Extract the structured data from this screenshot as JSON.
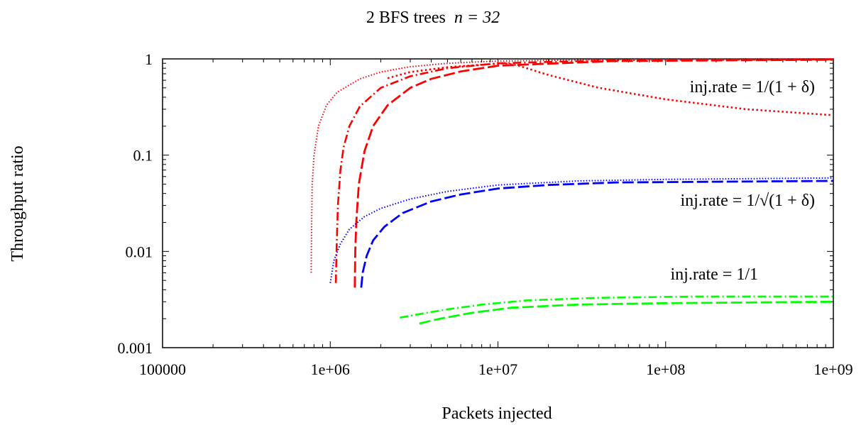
{
  "chart_data": {
    "type": "line",
    "title_prefix": "2 BFS trees",
    "title_math": "n = 32",
    "xlabel": "Packets injected",
    "ylabel": "Throughput ratio",
    "xscale": "log",
    "yscale": "log",
    "xlim": [
      100000,
      1000000000
    ],
    "ylim": [
      0.001,
      1
    ],
    "xticks": [
      100000,
      1000000,
      10000000,
      100000000,
      1000000000
    ],
    "xtick_labels": [
      "100000",
      "1e+06",
      "1e+07",
      "1e+08",
      "1e+09"
    ],
    "yticks": [
      0.001,
      0.01,
      0.1,
      1
    ],
    "ytick_labels": [
      "0.001",
      "0.01",
      "0.1",
      "1"
    ],
    "grid": false,
    "colors": {
      "red": "#ff0000",
      "blue": "#0000ff",
      "green": "#00ff00"
    },
    "annotations": [
      {
        "text": "inj.rate = 1/(1 + δ)",
        "color": "#ff0000"
      },
      {
        "text": "inj.rate = 1/√(1 + δ)",
        "color": "#0000ff"
      },
      {
        "text": "inj.rate = 1/1",
        "color": "#00ff00"
      }
    ],
    "series": [
      {
        "group": "red",
        "dash": "dot-fine",
        "points": [
          [
            770000,
            0.006
          ],
          [
            775000,
            0.02
          ],
          [
            780000,
            0.05
          ],
          [
            800000,
            0.1
          ],
          [
            850000,
            0.2
          ],
          [
            950000,
            0.33
          ],
          [
            1100000,
            0.45
          ],
          [
            1500000,
            0.62
          ],
          [
            2000000,
            0.73
          ],
          [
            3000000,
            0.83
          ],
          [
            5000000,
            0.9
          ],
          [
            10000000,
            0.95
          ],
          [
            50000000,
            0.985
          ],
          [
            1000000000,
            1.0
          ]
        ]
      },
      {
        "group": "red",
        "dash": "dash-dot",
        "points": [
          [
            1080000,
            0.0047
          ],
          [
            1090000,
            0.01
          ],
          [
            1110000,
            0.03
          ],
          [
            1150000,
            0.07
          ],
          [
            1200000,
            0.12
          ],
          [
            1300000,
            0.2
          ],
          [
            1500000,
            0.32
          ],
          [
            2000000,
            0.5
          ],
          [
            3000000,
            0.66
          ],
          [
            5000000,
            0.8
          ],
          [
            10000000,
            0.9
          ],
          [
            50000000,
            0.97
          ],
          [
            1000000000,
            0.99
          ]
        ]
      },
      {
        "group": "red",
        "dash": "long-dash",
        "points": [
          [
            1400000,
            0.0042
          ],
          [
            1410000,
            0.01
          ],
          [
            1430000,
            0.02
          ],
          [
            1480000,
            0.05
          ],
          [
            1600000,
            0.11
          ],
          [
            1800000,
            0.2
          ],
          [
            2200000,
            0.33
          ],
          [
            3000000,
            0.5
          ],
          [
            4000000,
            0.62
          ],
          [
            6000000,
            0.74
          ],
          [
            10000000,
            0.85
          ],
          [
            50000000,
            0.95
          ],
          [
            1000000000,
            0.98
          ]
        ]
      },
      {
        "group": "red",
        "dash": "dot",
        "points": [
          [
            2200000,
            0.63
          ],
          [
            3000000,
            0.73
          ],
          [
            5000000,
            0.82
          ],
          [
            8000000,
            0.87
          ],
          [
            11000000,
            0.9
          ],
          [
            13000000,
            0.86
          ],
          [
            20000000,
            0.68
          ],
          [
            40000000,
            0.5
          ],
          [
            100000000,
            0.38
          ],
          [
            300000000,
            0.3
          ],
          [
            1000000000,
            0.26
          ]
        ]
      },
      {
        "group": "blue",
        "dash": "dot-fine",
        "points": [
          [
            1000000,
            0.0047
          ],
          [
            1050000,
            0.008
          ],
          [
            1150000,
            0.012
          ],
          [
            1300000,
            0.017
          ],
          [
            1600000,
            0.023
          ],
          [
            2000000,
            0.028
          ],
          [
            3000000,
            0.035
          ],
          [
            5000000,
            0.042
          ],
          [
            10000000,
            0.049
          ],
          [
            30000000,
            0.054
          ],
          [
            100000000,
            0.056
          ],
          [
            1000000000,
            0.058
          ]
        ]
      },
      {
        "group": "blue",
        "dash": "long-dash",
        "points": [
          [
            1530000,
            0.0042
          ],
          [
            1560000,
            0.006
          ],
          [
            1650000,
            0.009
          ],
          [
            1800000,
            0.013
          ],
          [
            2100000,
            0.018
          ],
          [
            2700000,
            0.025
          ],
          [
            4000000,
            0.033
          ],
          [
            6000000,
            0.039
          ],
          [
            10000000,
            0.045
          ],
          [
            20000000,
            0.049
          ],
          [
            50000000,
            0.052
          ],
          [
            200000000,
            0.053
          ],
          [
            1000000000,
            0.054
          ]
        ]
      },
      {
        "group": "green",
        "dash": "dash-dot",
        "points": [
          [
            2600000,
            0.00205
          ],
          [
            3500000,
            0.00225
          ],
          [
            5000000,
            0.0025
          ],
          [
            8000000,
            0.0028
          ],
          [
            15000000,
            0.0031
          ],
          [
            40000000,
            0.0033
          ],
          [
            150000000,
            0.0034
          ],
          [
            1000000000,
            0.0034
          ]
        ]
      },
      {
        "group": "green",
        "dash": "long-dash",
        "points": [
          [
            3400000,
            0.00178
          ],
          [
            4500000,
            0.002
          ],
          [
            7000000,
            0.0023
          ],
          [
            12000000,
            0.0026
          ],
          [
            30000000,
            0.0028
          ],
          [
            100000000,
            0.0029
          ],
          [
            1000000000,
            0.003
          ]
        ]
      }
    ]
  }
}
